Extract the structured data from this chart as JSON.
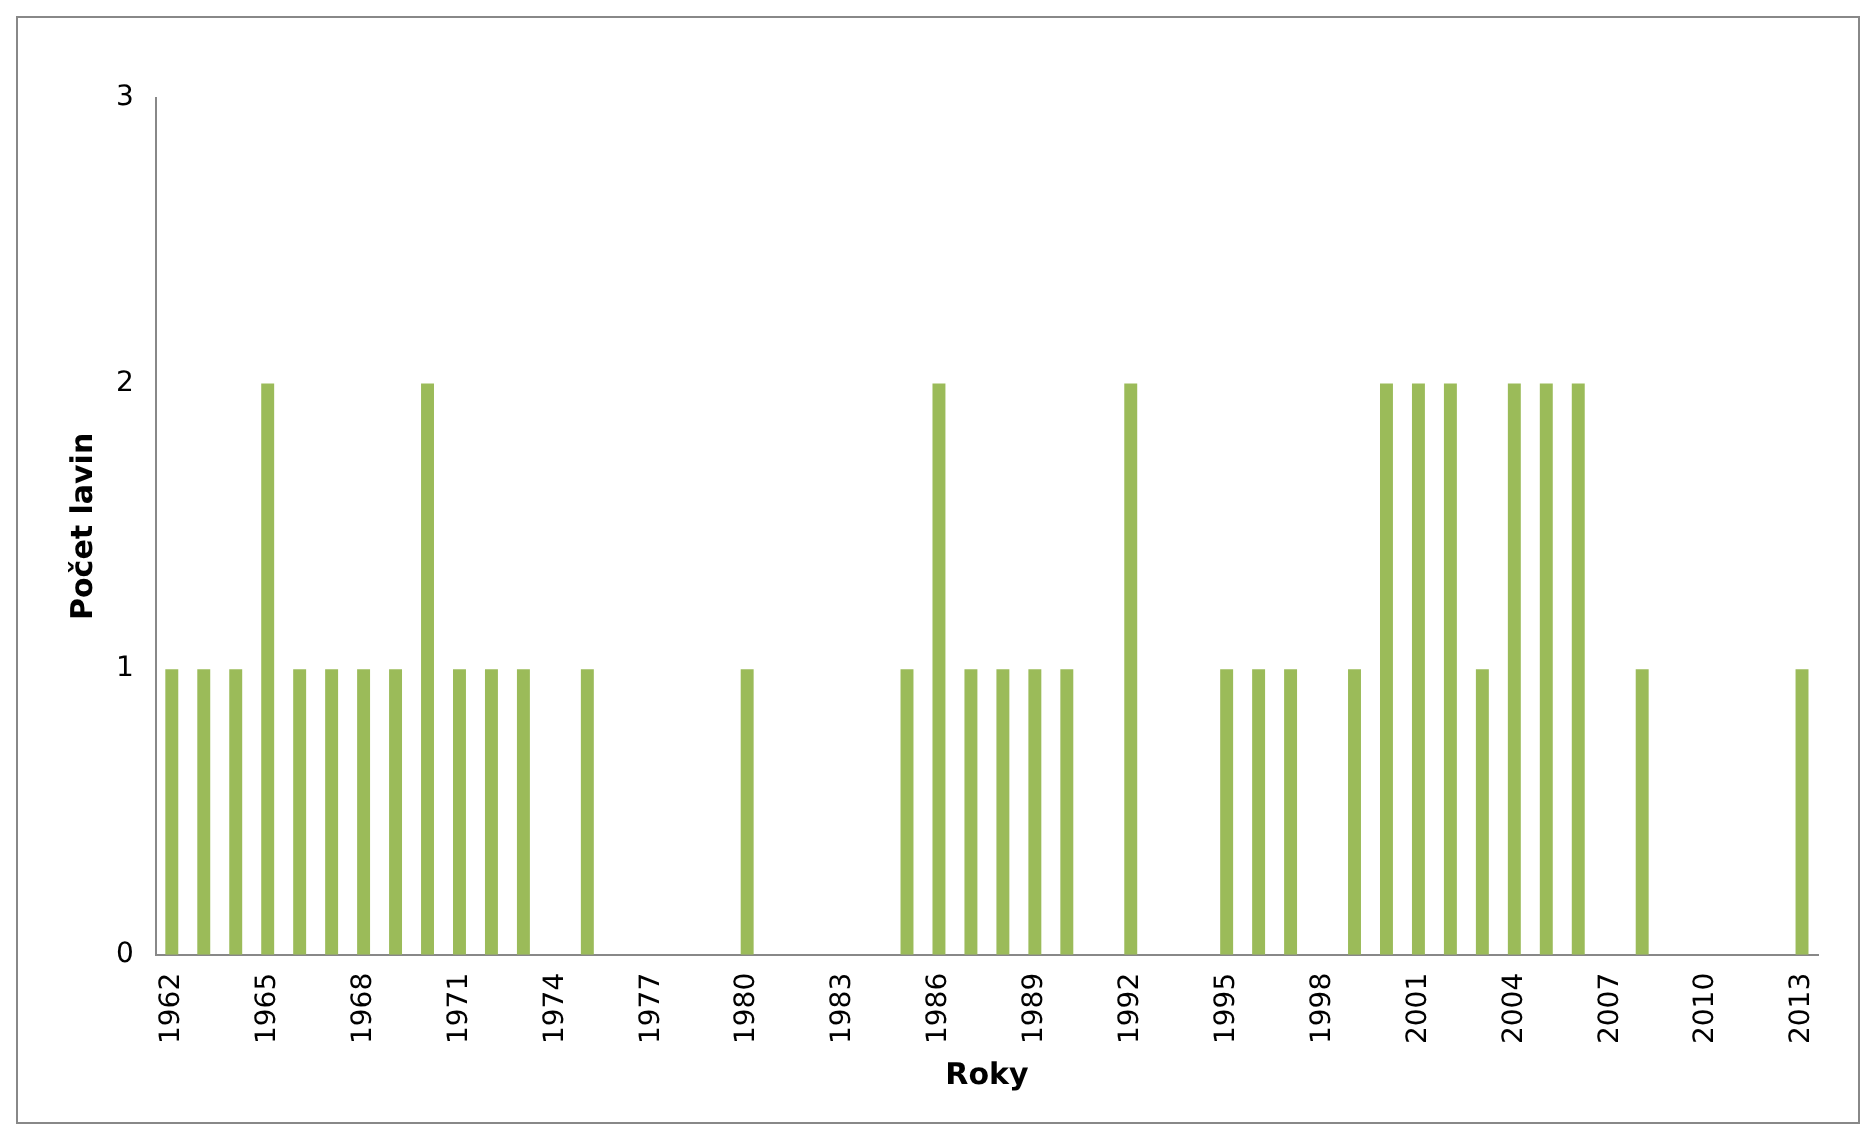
{
  "chart_data": {
    "type": "bar",
    "xlabel": "Roky",
    "ylabel": "Počet lavin",
    "categories": [
      "1962",
      null,
      null,
      "1965",
      null,
      null,
      "1968",
      null,
      null,
      "1971",
      null,
      null,
      "1974",
      null,
      null,
      "1977",
      null,
      null,
      "1980",
      null,
      null,
      "1983",
      null,
      null,
      "1986",
      null,
      null,
      "1989",
      null,
      null,
      "1992",
      null,
      null,
      "1995",
      null,
      null,
      "1998",
      null,
      null,
      "2001",
      null,
      null,
      "2004",
      null,
      null,
      "2007",
      null,
      null,
      "2010",
      null,
      null,
      "2013"
    ],
    "values": [
      1,
      1,
      1,
      2,
      1,
      1,
      1,
      1,
      2,
      1,
      1,
      1,
      0,
      1,
      0,
      0,
      0,
      0,
      1,
      0,
      0,
      0,
      0,
      1,
      2,
      1,
      1,
      1,
      1,
      0,
      2,
      0,
      0,
      1,
      1,
      1,
      0,
      1,
      2,
      2,
      2,
      1,
      2,
      2,
      2,
      0,
      1,
      0,
      0,
      0,
      0,
      1
    ],
    "color": "#9bbb59",
    "ylim": [
      0,
      3
    ],
    "yticks": [
      0,
      1,
      2,
      3
    ],
    "grid": false,
    "legend": false
  }
}
